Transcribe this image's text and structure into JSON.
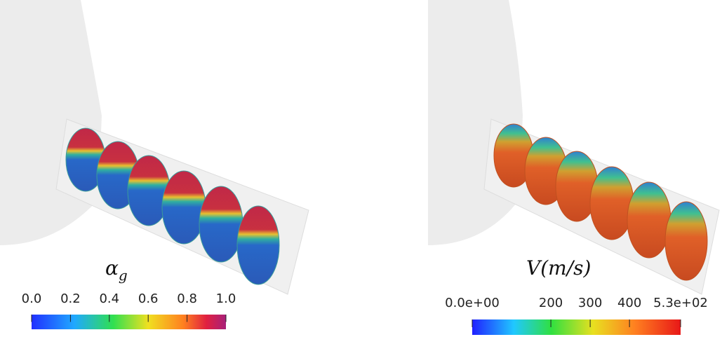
{
  "panels": [
    {
      "label": {
        "symbol": "α",
        "subscript": "g"
      },
      "colorbar": {
        "range": [
          0,
          1
        ],
        "ticks": [
          {
            "value": 0,
            "label": "0.0"
          },
          {
            "value": 0.2,
            "label": "0.2"
          },
          {
            "value": 0.4,
            "label": "0.4"
          },
          {
            "value": 0.6,
            "label": "0.6"
          },
          {
            "value": 0.8,
            "label": "0.8"
          },
          {
            "value": 1,
            "label": "1.0"
          }
        ]
      }
    },
    {
      "label": {
        "text": "V(m/s)"
      },
      "colorbar": {
        "range": [
          0,
          530
        ],
        "ticks": [
          {
            "value": 0,
            "label": "0.0e+00"
          },
          200,
          300,
          400,
          {
            "value": 530,
            "label": "5.3e+02"
          }
        ]
      }
    }
  ]
}
